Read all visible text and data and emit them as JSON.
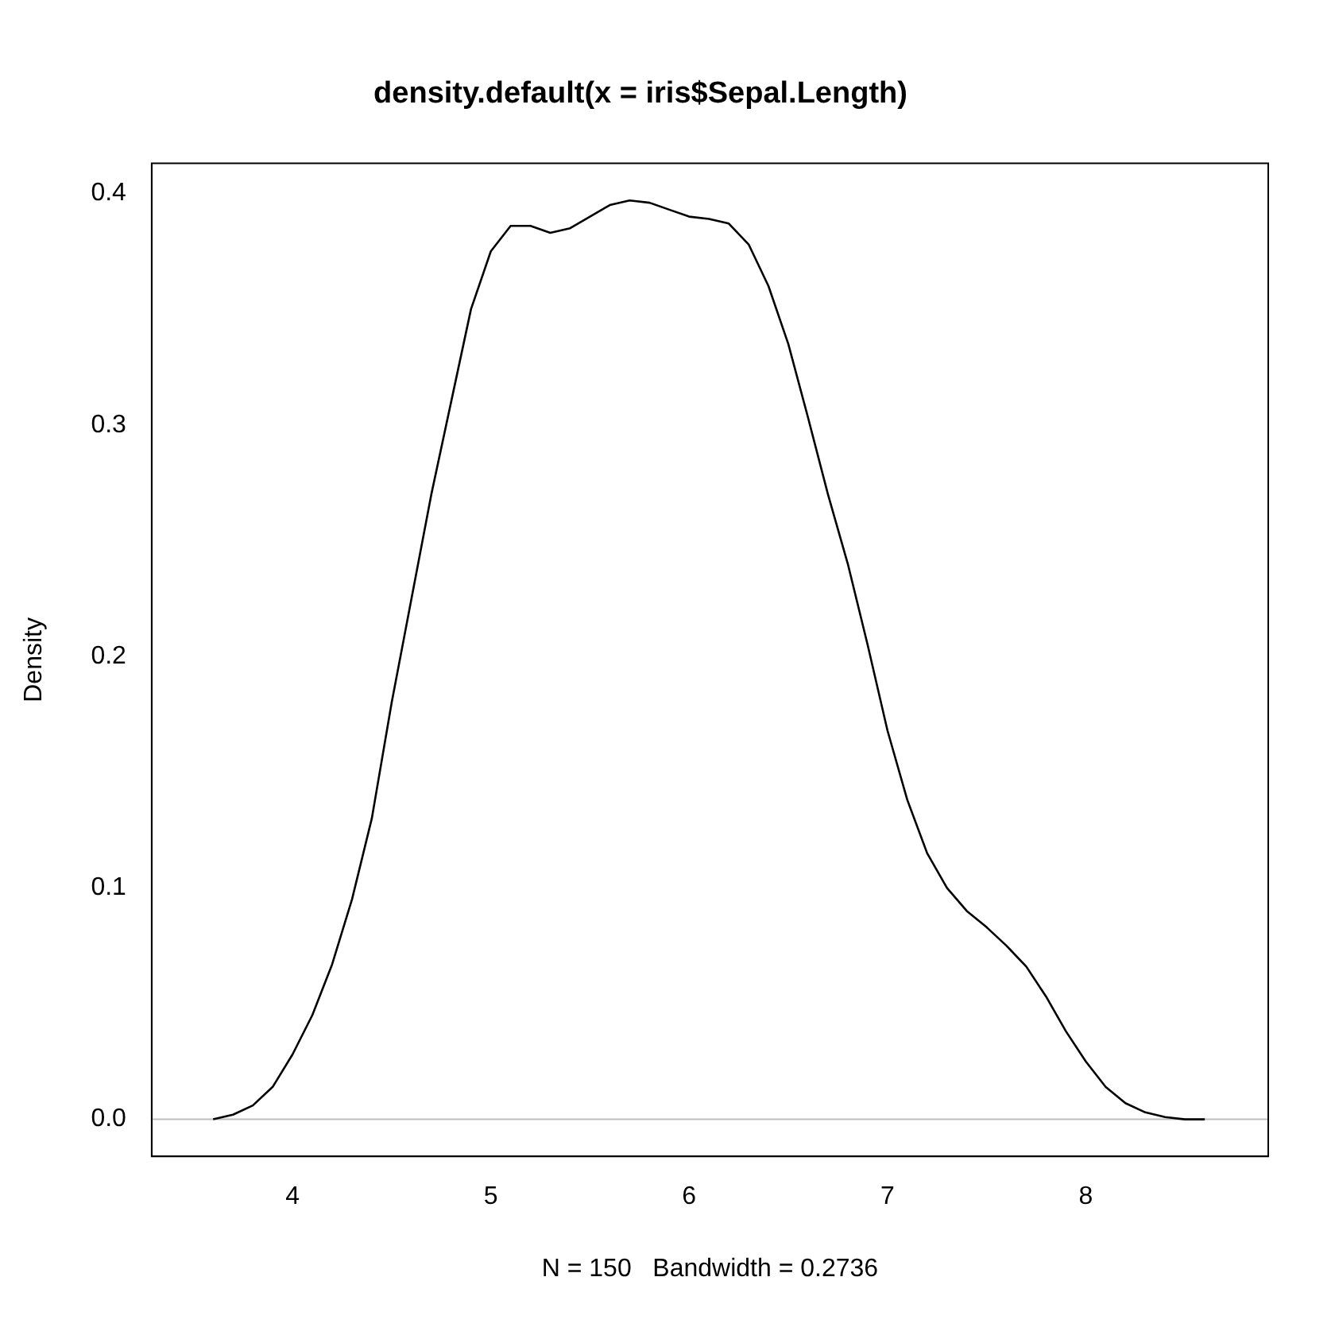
{
  "chart_data": {
    "type": "line",
    "title": "density.default(x = iris$Sepal.Length)",
    "xlabel": "N = 150   Bandwidth = 0.2736",
    "ylabel": "Density",
    "x": [
      3.6,
      3.7,
      3.8,
      3.9,
      4.0,
      4.1,
      4.2,
      4.3,
      4.4,
      4.5,
      4.6,
      4.7,
      4.8,
      4.9,
      5.0,
      5.1,
      5.2,
      5.3,
      5.4,
      5.5,
      5.6,
      5.7,
      5.8,
      5.9,
      6.0,
      6.1,
      6.2,
      6.3,
      6.4,
      6.5,
      6.6,
      6.7,
      6.8,
      6.9,
      7.0,
      7.1,
      7.2,
      7.3,
      7.4,
      7.5,
      7.6,
      7.7,
      7.8,
      7.9,
      8.0,
      8.1,
      8.2,
      8.3,
      8.4,
      8.5,
      8.6
    ],
    "series": [
      {
        "color": "#000000",
        "values": [
          0.0,
          0.002,
          0.006,
          0.014,
          0.028,
          0.045,
          0.067,
          0.095,
          0.13,
          0.18,
          0.225,
          0.27,
          0.31,
          0.35,
          0.375,
          0.386,
          0.386,
          0.383,
          0.385,
          0.39,
          0.395,
          0.397,
          0.396,
          0.393,
          0.39,
          0.389,
          0.387,
          0.378,
          0.36,
          0.335,
          0.303,
          0.27,
          0.24,
          0.205,
          0.168,
          0.138,
          0.115,
          0.1,
          0.09,
          0.083,
          0.075,
          0.066,
          0.053,
          0.038,
          0.025,
          0.014,
          0.007,
          0.003,
          0.001,
          0.0,
          0.0
        ]
      }
    ],
    "xlim": [
      3.29,
      8.92
    ],
    "ylim": [
      -0.016,
      0.413
    ],
    "xticks": [
      4,
      5,
      6,
      7,
      8
    ],
    "yticks": [
      {
        "value": 0,
        "label": "0.0"
      },
      {
        "value": 0.1,
        "label": "0.1"
      },
      {
        "value": 0.2,
        "label": "0.2"
      },
      {
        "value": 0.3,
        "label": "0.3"
      },
      {
        "value": 0.4,
        "label": "0.4"
      }
    ],
    "ref_lines": [
      {
        "axis": "y",
        "value": 0,
        "color": "#bebebe"
      }
    ]
  }
}
